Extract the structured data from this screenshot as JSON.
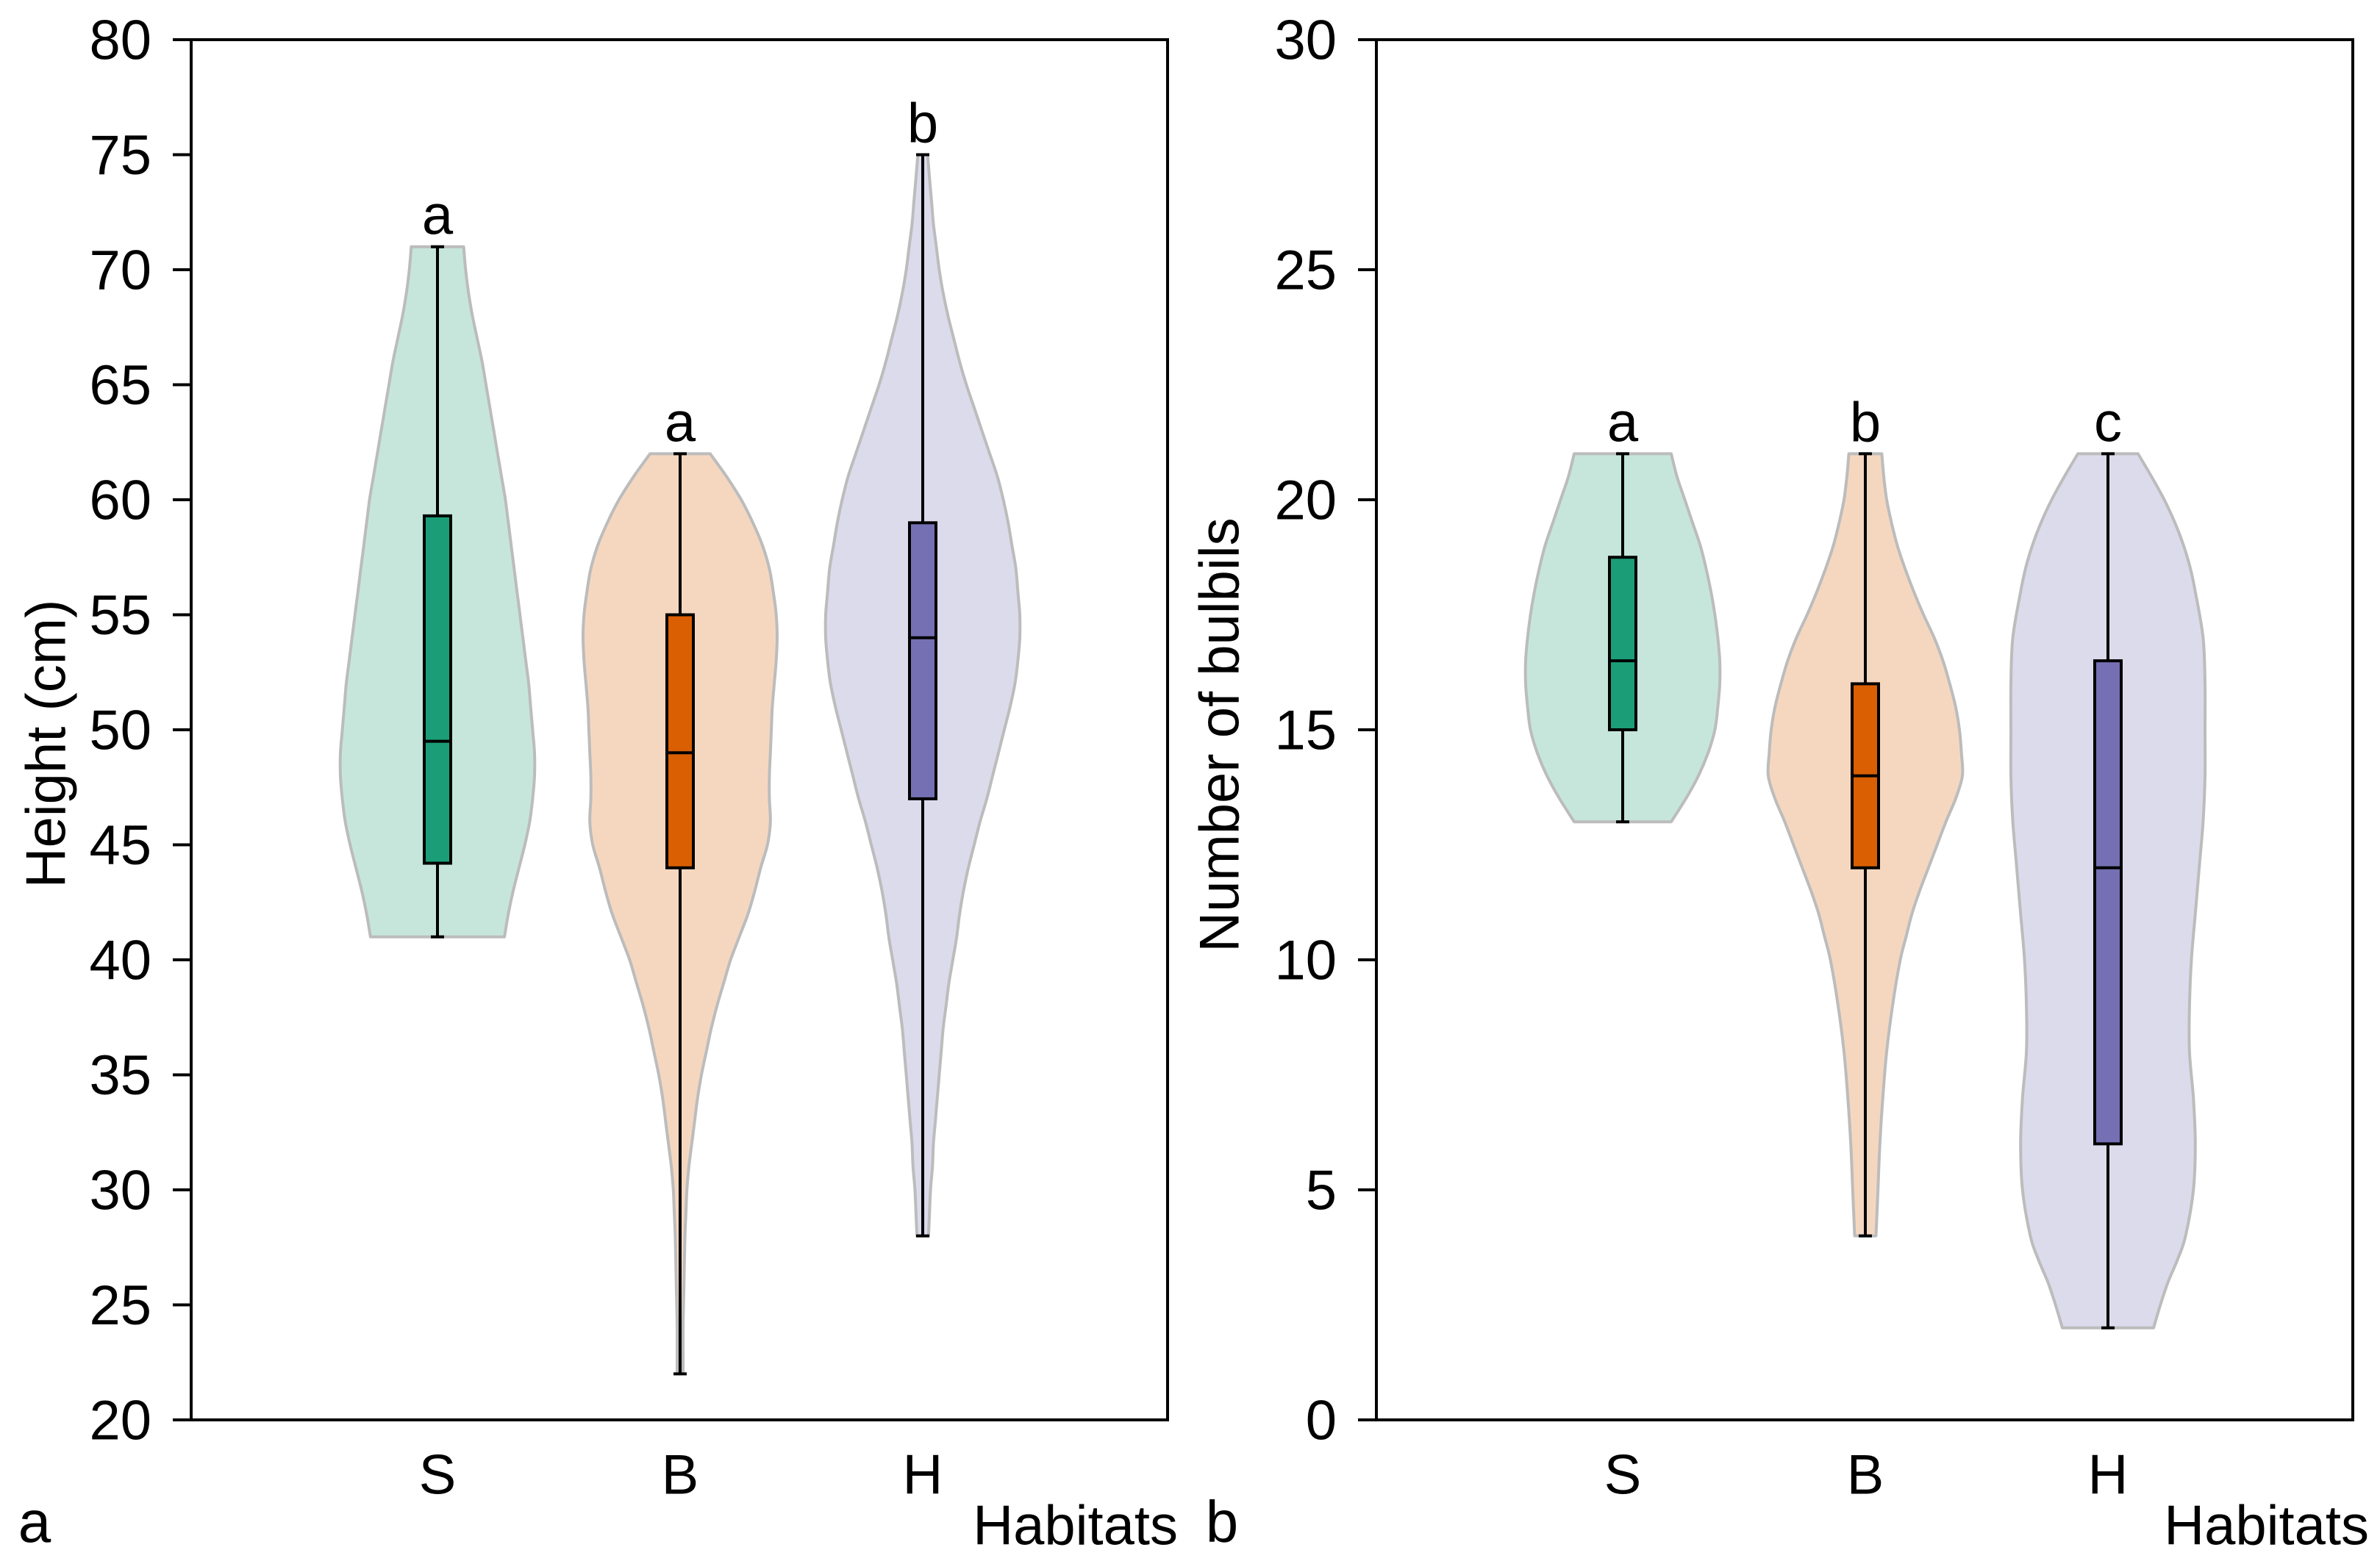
{
  "chart_data": [
    {
      "type": "violin",
      "panel_label": "a",
      "xlabel": "Habitats",
      "ylabel": "Height (cm)",
      "ylim": [
        20,
        80
      ],
      "yticks": [
        20,
        25,
        30,
        35,
        40,
        45,
        50,
        55,
        60,
        65,
        70,
        75,
        80
      ],
      "ytick_labels": [
        "20",
        "25",
        "30",
        "35",
        "40",
        "45",
        "50",
        "55",
        "60",
        "65",
        "70",
        "75",
        "80"
      ],
      "categories": [
        "S",
        "B",
        "H"
      ],
      "violin_edge_color": "#bcbcbc",
      "groups": [
        {
          "significance": "a",
          "min": 41,
          "q1": 44.2,
          "median": 49.5,
          "q3": 59.3,
          "max": 71,
          "box_color": "#1b9e77",
          "violin_color": "#c6e6dc",
          "density": [
            [
              71,
              0.27
            ],
            [
              70,
              0.29
            ],
            [
              69,
              0.32
            ],
            [
              68,
              0.36
            ],
            [
              67,
              0.41
            ],
            [
              66,
              0.46
            ],
            [
              65,
              0.5
            ],
            [
              64,
              0.54
            ],
            [
              63,
              0.58
            ],
            [
              62,
              0.62
            ],
            [
              61,
              0.66
            ],
            [
              60,
              0.7
            ],
            [
              59,
              0.73
            ],
            [
              58,
              0.76
            ],
            [
              57,
              0.79
            ],
            [
              56,
              0.82
            ],
            [
              55,
              0.85
            ],
            [
              54,
              0.88
            ],
            [
              53,
              0.91
            ],
            [
              52,
              0.94
            ],
            [
              51,
              0.96
            ],
            [
              50,
              0.98
            ],
            [
              49,
              1.0
            ],
            [
              48,
              1.0
            ],
            [
              47,
              0.98
            ],
            [
              46,
              0.95
            ],
            [
              45,
              0.9
            ],
            [
              44,
              0.84
            ],
            [
              43,
              0.78
            ],
            [
              42,
              0.73
            ],
            [
              41,
              0.69
            ]
          ]
        },
        {
          "significance": "a",
          "min": 22,
          "q1": 44,
          "median": 49,
          "q3": 55,
          "max": 62,
          "box_color": "#d95f02",
          "violin_color": "#f5d7c0",
          "density": [
            [
              62,
              0.31
            ],
            [
              61,
              0.48
            ],
            [
              60,
              0.63
            ],
            [
              59,
              0.75
            ],
            [
              58,
              0.85
            ],
            [
              57,
              0.92
            ],
            [
              56,
              0.96
            ],
            [
              55,
              0.99
            ],
            [
              54,
              1.0
            ],
            [
              53,
              0.99
            ],
            [
              52,
              0.97
            ],
            [
              51,
              0.95
            ],
            [
              50,
              0.94
            ],
            [
              49,
              0.93
            ],
            [
              48,
              0.92
            ],
            [
              47,
              0.92
            ],
            [
              46,
              0.93
            ],
            [
              45,
              0.9
            ],
            [
              44,
              0.83
            ],
            [
              43,
              0.77
            ],
            [
              42,
              0.7
            ],
            [
              41,
              0.61
            ],
            [
              40,
              0.52
            ],
            [
              39,
              0.45
            ],
            [
              38,
              0.38
            ],
            [
              37,
              0.32
            ],
            [
              36,
              0.27
            ],
            [
              35,
              0.22
            ],
            [
              34,
              0.18
            ],
            [
              33,
              0.15
            ],
            [
              32,
              0.12
            ],
            [
              31,
              0.09
            ],
            [
              30,
              0.07
            ],
            [
              29,
              0.06
            ],
            [
              28,
              0.05
            ],
            [
              27,
              0.045
            ],
            [
              26,
              0.04
            ],
            [
              25,
              0.035
            ],
            [
              24,
              0.03
            ],
            [
              23,
              0.03
            ],
            [
              22,
              0.03
            ]
          ]
        },
        {
          "significance": "b",
          "min": 28,
          "q1": 47,
          "median": 54,
          "q3": 59,
          "max": 75,
          "box_color": "#7570b3",
          "violin_color": "#dcdbec",
          "density": [
            [
              75,
              0.05
            ],
            [
              74,
              0.07
            ],
            [
              73,
              0.09
            ],
            [
              72,
              0.11
            ],
            [
              71,
              0.14
            ],
            [
              70,
              0.17
            ],
            [
              69,
              0.21
            ],
            [
              68,
              0.26
            ],
            [
              67,
              0.32
            ],
            [
              66,
              0.38
            ],
            [
              65,
              0.45
            ],
            [
              64,
              0.53
            ],
            [
              63,
              0.61
            ],
            [
              62,
              0.69
            ],
            [
              61,
              0.77
            ],
            [
              60,
              0.83
            ],
            [
              59,
              0.88
            ],
            [
              58,
              0.92
            ],
            [
              57,
              0.96
            ],
            [
              56,
              0.98
            ],
            [
              55,
              1.0
            ],
            [
              54,
              1.0
            ],
            [
              53,
              0.98
            ],
            [
              52,
              0.95
            ],
            [
              51,
              0.9
            ],
            [
              50,
              0.84
            ],
            [
              49,
              0.78
            ],
            [
              48,
              0.72
            ],
            [
              47,
              0.66
            ],
            [
              46,
              0.59
            ],
            [
              45,
              0.53
            ],
            [
              44,
              0.47
            ],
            [
              43,
              0.42
            ],
            [
              42,
              0.38
            ],
            [
              41,
              0.35
            ],
            [
              40,
              0.31
            ],
            [
              39,
              0.27
            ],
            [
              38,
              0.24
            ],
            [
              37,
              0.21
            ],
            [
              36,
              0.19
            ],
            [
              35,
              0.17
            ],
            [
              34,
              0.15
            ],
            [
              33,
              0.13
            ],
            [
              32,
              0.11
            ],
            [
              31,
              0.1
            ],
            [
              30,
              0.08
            ],
            [
              29,
              0.07
            ],
            [
              28,
              0.06
            ]
          ]
        }
      ]
    },
    {
      "type": "violin",
      "panel_label": "b",
      "xlabel": "Habitats",
      "ylabel": "Number of bulbils",
      "ylim": [
        0,
        30
      ],
      "yticks": [
        0,
        5,
        10,
        15,
        20,
        25,
        30
      ],
      "ytick_labels": [
        "0",
        "5",
        "10",
        "15",
        "20",
        "25",
        "30"
      ],
      "categories": [
        "S",
        "B",
        "H"
      ],
      "violin_edge_color": "#bcbcbc",
      "groups": [
        {
          "significance": "a",
          "min": 13,
          "q1": 15,
          "median": 16.5,
          "q3": 18.75,
          "max": 21,
          "box_color": "#1b9e77",
          "violin_color": "#c6e6dc",
          "density": [
            [
              21,
              0.5
            ],
            [
              20.5,
              0.56
            ],
            [
              20,
              0.64
            ],
            [
              19.5,
              0.72
            ],
            [
              19,
              0.8
            ],
            [
              18.5,
              0.86
            ],
            [
              18,
              0.91
            ],
            [
              17.5,
              0.95
            ],
            [
              17,
              0.98
            ],
            [
              16.5,
              1.0
            ],
            [
              16,
              1.0
            ],
            [
              15.5,
              0.98
            ],
            [
              15,
              0.95
            ],
            [
              14.5,
              0.88
            ],
            [
              14,
              0.78
            ],
            [
              13.5,
              0.65
            ],
            [
              13,
              0.5
            ]
          ]
        },
        {
          "significance": "b",
          "min": 4,
          "q1": 12,
          "median": 14,
          "q3": 16,
          "max": 21,
          "box_color": "#d95f02",
          "violin_color": "#f5d7c0",
          "density": [
            [
              21,
              0.17
            ],
            [
              20.5,
              0.19
            ],
            [
              20,
              0.22
            ],
            [
              19.5,
              0.27
            ],
            [
              19,
              0.33
            ],
            [
              18.5,
              0.41
            ],
            [
              18,
              0.5
            ],
            [
              17.5,
              0.6
            ],
            [
              17,
              0.71
            ],
            [
              16.5,
              0.8
            ],
            [
              16,
              0.87
            ],
            [
              15.5,
              0.93
            ],
            [
              15,
              0.97
            ],
            [
              14.5,
              0.99
            ],
            [
              14,
              1.0
            ],
            [
              13.5,
              0.93
            ],
            [
              13,
              0.83
            ],
            [
              12.5,
              0.74
            ],
            [
              12,
              0.65
            ],
            [
              11.5,
              0.56
            ],
            [
              11,
              0.48
            ],
            [
              10.5,
              0.42
            ],
            [
              10,
              0.36
            ],
            [
              9,
              0.28
            ],
            [
              8,
              0.22
            ],
            [
              7,
              0.18
            ],
            [
              6,
              0.15
            ],
            [
              5,
              0.13
            ],
            [
              4,
              0.11
            ]
          ]
        },
        {
          "significance": "c",
          "min": 2,
          "q1": 6,
          "median": 12,
          "q3": 16.5,
          "max": 21,
          "box_color": "#7570b3",
          "violin_color": "#dcdbec",
          "density": [
            [
              21,
              0.31
            ],
            [
              20.5,
              0.45
            ],
            [
              20,
              0.58
            ],
            [
              19.5,
              0.69
            ],
            [
              19,
              0.78
            ],
            [
              18.5,
              0.85
            ],
            [
              18,
              0.9
            ],
            [
              17,
              0.98
            ],
            [
              16,
              1.0
            ],
            [
              15,
              1.0
            ],
            [
              14,
              1.0
            ],
            [
              13,
              0.98
            ],
            [
              12,
              0.94
            ],
            [
              11,
              0.9
            ],
            [
              10,
              0.86
            ],
            [
              9,
              0.84
            ],
            [
              8,
              0.84
            ],
            [
              7,
              0.88
            ],
            [
              6,
              0.9
            ],
            [
              5,
              0.88
            ],
            [
              4,
              0.8
            ],
            [
              3.5,
              0.72
            ],
            [
              3,
              0.62
            ],
            [
              2.5,
              0.54
            ],
            [
              2,
              0.47
            ]
          ]
        }
      ]
    }
  ]
}
